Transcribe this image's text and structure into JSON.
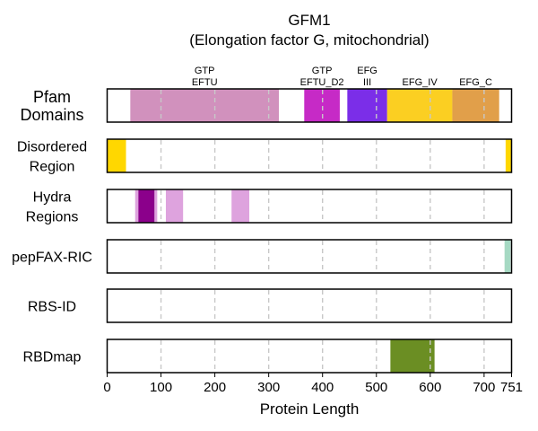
{
  "chart_data": {
    "type": "bar",
    "title": "GFM1",
    "subtitle": "(Elongation factor G, mitochondrial)",
    "xlabel": "Protein Length",
    "xlim": [
      0,
      751
    ],
    "xticks": [
      0,
      100,
      200,
      300,
      400,
      500,
      600,
      700,
      751
    ],
    "grid": "vertical dashed",
    "tracks": [
      {
        "name": "Pfam Domains",
        "label_lines": [
          "Pfam",
          "Domains"
        ],
        "segments": [
          {
            "label_lines": [
              "GTP",
              "EFTU"
            ],
            "start": 43,
            "end": 319,
            "color": "#d191bd"
          },
          {
            "label_lines": [
              "GTP",
              "EFTU_D2"
            ],
            "start": 366,
            "end": 432,
            "color": "#c62ac6"
          },
          {
            "label_lines": [
              "EFG",
              "III"
            ],
            "start": 446,
            "end": 520,
            "color": "#7b2ee8"
          },
          {
            "label_lines": [
              "EFG_IV"
            ],
            "start": 520,
            "end": 641,
            "color": "#fbcf22"
          },
          {
            "label_lines": [
              "EFG_C"
            ],
            "start": 641,
            "end": 728,
            "color": "#e19f4a"
          }
        ]
      },
      {
        "name": "Disordered Region",
        "label_lines": [
          "Disordered",
          "Region"
        ],
        "segments": [
          {
            "start": 0,
            "end": 35,
            "color": "#ffd700"
          },
          {
            "start": 740,
            "end": 751,
            "color": "#ffd700"
          }
        ]
      },
      {
        "name": "Hydra Regions",
        "label_lines": [
          "Hydra",
          "Regions"
        ],
        "segments": [
          {
            "start": 52,
            "end": 58,
            "color": "#dea3de"
          },
          {
            "start": 58,
            "end": 88,
            "color": "#8b008b"
          },
          {
            "start": 88,
            "end": 93,
            "color": "#dea3de"
          },
          {
            "start": 109,
            "end": 141,
            "color": "#dea3de"
          },
          {
            "start": 231,
            "end": 264,
            "color": "#dea3de"
          }
        ]
      },
      {
        "name": "pepFAX-RIC",
        "label_lines": [
          "pepFAX-RIC"
        ],
        "segments": [
          {
            "start": 738,
            "end": 749,
            "color": "#a6d9c3"
          }
        ]
      },
      {
        "name": "RBS-ID",
        "label_lines": [
          "RBS-ID"
        ],
        "segments": []
      },
      {
        "name": "RBDmap",
        "label_lines": [
          "RBDmap"
        ],
        "segments": [
          {
            "start": 526,
            "end": 608,
            "color": "#6b8e23"
          }
        ]
      }
    ]
  }
}
